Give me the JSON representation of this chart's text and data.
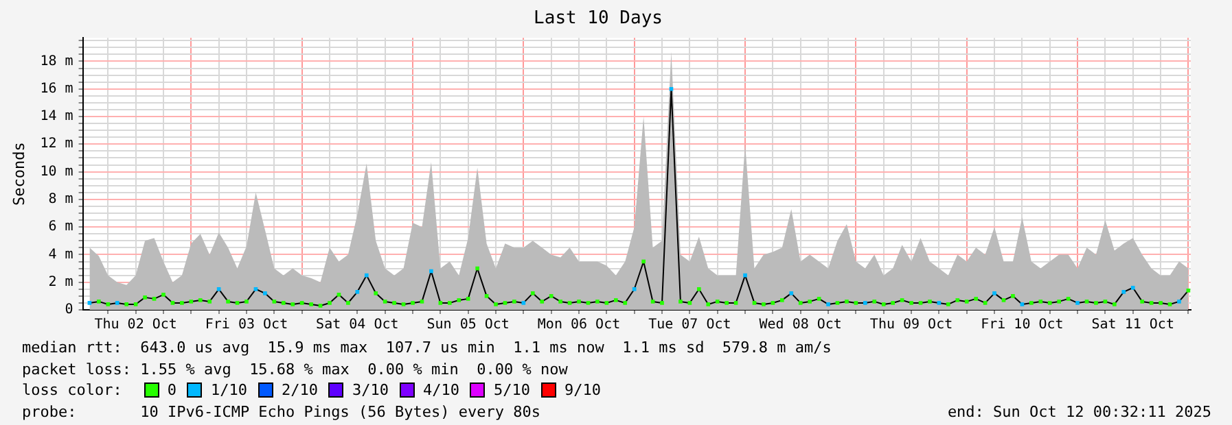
{
  "chart_data": {
    "type": "line",
    "title": "Last 10 Days",
    "ylabel": "Seconds",
    "legend_title": "loss color:",
    "legend": "bottom",
    "grid": true,
    "marker": "square",
    "xlim": [
      "2025-10-02T00:32",
      "2025-10-12T00:32"
    ],
    "xticks": [
      {
        "value": "2025-10-02T06:00",
        "label": null
      },
      {
        "value": "2025-10-02T12:00",
        "label": "Thu 02 Oct"
      },
      {
        "value": "2025-10-02T18:00",
        "label": null
      },
      {
        "value": "2025-10-03T00:00",
        "label": null
      },
      {
        "value": "2025-10-03T06:00",
        "label": null
      },
      {
        "value": "2025-10-03T12:00",
        "label": "Fri 03 Oct"
      },
      {
        "value": "2025-10-03T18:00",
        "label": null
      },
      {
        "value": "2025-10-04T00:00",
        "label": null
      },
      {
        "value": "2025-10-04T06:00",
        "label": null
      },
      {
        "value": "2025-10-04T12:00",
        "label": "Sat 04 Oct"
      },
      {
        "value": "2025-10-04T18:00",
        "label": null
      },
      {
        "value": "2025-10-05T00:00",
        "label": null
      },
      {
        "value": "2025-10-05T06:00",
        "label": null
      },
      {
        "value": "2025-10-05T12:00",
        "label": "Sun 05 Oct"
      },
      {
        "value": "2025-10-05T18:00",
        "label": null
      },
      {
        "value": "2025-10-06T00:00",
        "label": null
      },
      {
        "value": "2025-10-06T06:00",
        "label": null
      },
      {
        "value": "2025-10-06T12:00",
        "label": "Mon 06 Oct"
      },
      {
        "value": "2025-10-06T18:00",
        "label": null
      },
      {
        "value": "2025-10-07T00:00",
        "label": null
      },
      {
        "value": "2025-10-07T06:00",
        "label": null
      },
      {
        "value": "2025-10-07T12:00",
        "label": "Tue 07 Oct"
      },
      {
        "value": "2025-10-07T18:00",
        "label": null
      },
      {
        "value": "2025-10-08T00:00",
        "label": null
      },
      {
        "value": "2025-10-08T06:00",
        "label": null
      },
      {
        "value": "2025-10-08T12:00",
        "label": "Wed 08 Oct"
      },
      {
        "value": "2025-10-08T18:00",
        "label": null
      },
      {
        "value": "2025-10-09T00:00",
        "label": null
      },
      {
        "value": "2025-10-09T06:00",
        "label": null
      },
      {
        "value": "2025-10-09T12:00",
        "label": "Thu 09 Oct"
      },
      {
        "value": "2025-10-09T18:00",
        "label": null
      },
      {
        "value": "2025-10-10T00:00",
        "label": null
      },
      {
        "value": "2025-10-10T06:00",
        "label": null
      },
      {
        "value": "2025-10-10T12:00",
        "label": "Fri 10 Oct"
      },
      {
        "value": "2025-10-10T18:00",
        "label": null
      },
      {
        "value": "2025-10-11T00:00",
        "label": null
      },
      {
        "value": "2025-10-11T06:00",
        "label": null
      },
      {
        "value": "2025-10-11T12:00",
        "label": "Sat 11 Oct"
      },
      {
        "value": "2025-10-11T18:00",
        "label": null
      },
      {
        "value": "2025-10-12T00:00",
        "label": null
      }
    ],
    "ylim": [
      0,
      19.7
    ],
    "yticks": [
      0,
      {
        "value": 0.5,
        "label": null
      },
      {
        "value": 1,
        "label": null
      },
      {
        "value": 1.5,
        "label": null
      },
      {
        "value": 2,
        "label": "2 m"
      },
      {
        "value": 2.5,
        "label": null
      },
      {
        "value": 3,
        "label": null
      },
      {
        "value": 3.5,
        "label": null
      },
      {
        "value": 4,
        "label": "4 m"
      },
      {
        "value": 4.5,
        "label": null
      },
      {
        "value": 5,
        "label": null
      },
      {
        "value": 5.5,
        "label": null
      },
      {
        "value": 6,
        "label": "6 m"
      },
      {
        "value": 6.5,
        "label": null
      },
      {
        "value": 7,
        "label": null
      },
      {
        "value": 7.5,
        "label": null
      },
      {
        "value": 8,
        "label": "8 m"
      },
      {
        "value": 8.5,
        "label": null
      },
      {
        "value": 9,
        "label": null
      },
      {
        "value": 9.5,
        "label": null
      },
      {
        "value": 10,
        "label": "10 m"
      },
      {
        "value": 10.5,
        "label": null
      },
      {
        "value": 11,
        "label": null
      },
      {
        "value": 11.5,
        "label": null
      },
      {
        "value": 12,
        "label": "12 m"
      },
      {
        "value": 12.5,
        "label": null
      },
      {
        "value": 13,
        "label": null
      },
      {
        "value": 13.5,
        "label": null
      },
      {
        "value": 14,
        "label": "14 m"
      },
      {
        "value": 14.5,
        "label": null
      },
      {
        "value": 15,
        "label": null
      },
      {
        "value": 15.5,
        "label": null
      },
      {
        "value": 16,
        "label": "16 m"
      },
      {
        "value": 16.5,
        "label": null
      },
      {
        "value": 17,
        "label": null
      },
      {
        "value": 17.5,
        "label": null
      },
      {
        "value": 18,
        "label": "18 m"
      },
      {
        "value": 18.5,
        "label": null
      },
      {
        "value": 19,
        "label": null
      },
      {
        "value": 19.5,
        "label": null
      }
    ],
    "x": [
      "2025-10-02T02:00",
      "2025-10-02T04:00",
      "2025-10-02T06:00",
      "2025-10-02T08:00",
      "2025-10-02T10:00",
      "2025-10-02T12:00",
      "2025-10-02T14:00",
      "2025-10-02T16:00",
      "2025-10-02T18:00",
      "2025-10-02T20:00",
      "2025-10-02T22:00",
      "2025-10-03T00:00",
      "2025-10-03T02:00",
      "2025-10-03T04:00",
      "2025-10-03T06:00",
      "2025-10-03T08:00",
      "2025-10-03T10:00",
      "2025-10-03T12:00",
      "2025-10-03T14:00",
      "2025-10-03T16:00",
      "2025-10-03T18:00",
      "2025-10-03T20:00",
      "2025-10-03T22:00",
      "2025-10-04T00:00",
      "2025-10-04T02:00",
      "2025-10-04T04:00",
      "2025-10-04T06:00",
      "2025-10-04T08:00",
      "2025-10-04T10:00",
      "2025-10-04T12:00",
      "2025-10-04T14:00",
      "2025-10-04T16:00",
      "2025-10-04T18:00",
      "2025-10-04T20:00",
      "2025-10-04T22:00",
      "2025-10-05T00:00",
      "2025-10-05T02:00",
      "2025-10-05T04:00",
      "2025-10-05T06:00",
      "2025-10-05T08:00",
      "2025-10-05T10:00",
      "2025-10-05T12:00",
      "2025-10-05T14:00",
      "2025-10-05T16:00",
      "2025-10-05T18:00",
      "2025-10-05T20:00",
      "2025-10-05T22:00",
      "2025-10-06T00:00",
      "2025-10-06T02:00",
      "2025-10-06T04:00",
      "2025-10-06T06:00",
      "2025-10-06T08:00",
      "2025-10-06T10:00",
      "2025-10-06T12:00",
      "2025-10-06T14:00",
      "2025-10-06T16:00",
      "2025-10-06T18:00",
      "2025-10-06T20:00",
      "2025-10-06T22:00",
      "2025-10-07T00:00",
      "2025-10-07T02:00",
      "2025-10-07T04:00",
      "2025-10-07T06:00",
      "2025-10-07T08:00",
      "2025-10-07T10:00",
      "2025-10-07T12:00",
      "2025-10-07T14:00",
      "2025-10-07T16:00",
      "2025-10-07T18:00",
      "2025-10-07T20:00",
      "2025-10-07T22:00",
      "2025-10-08T00:00",
      "2025-10-08T02:00",
      "2025-10-08T04:00",
      "2025-10-08T06:00",
      "2025-10-08T08:00",
      "2025-10-08T10:00",
      "2025-10-08T12:00",
      "2025-10-08T14:00",
      "2025-10-08T16:00",
      "2025-10-08T18:00",
      "2025-10-08T20:00",
      "2025-10-08T22:00",
      "2025-10-09T00:00",
      "2025-10-09T02:00",
      "2025-10-09T04:00",
      "2025-10-09T06:00",
      "2025-10-09T08:00",
      "2025-10-09T10:00",
      "2025-10-09T12:00",
      "2025-10-09T14:00",
      "2025-10-09T16:00",
      "2025-10-09T18:00",
      "2025-10-09T20:00",
      "2025-10-09T22:00",
      "2025-10-10T00:00",
      "2025-10-10T02:00",
      "2025-10-10T04:00",
      "2025-10-10T06:00",
      "2025-10-10T08:00",
      "2025-10-10T10:00",
      "2025-10-10T12:00",
      "2025-10-10T14:00",
      "2025-10-10T16:00",
      "2025-10-10T18:00",
      "2025-10-10T20:00",
      "2025-10-10T22:00",
      "2025-10-11T00:00",
      "2025-10-11T02:00",
      "2025-10-11T04:00",
      "2025-10-11T06:00",
      "2025-10-11T08:00",
      "2025-10-11T10:00",
      "2025-10-11T12:00",
      "2025-10-11T14:00",
      "2025-10-11T16:00",
      "2025-10-11T18:00",
      "2025-10-11T20:00",
      "2025-10-11T22:00",
      "2025-10-12T00:00"
    ],
    "series": [
      {
        "type": "area",
        "color": "#bbbbbb",
        "marker": "none",
        "values": [
          4.5,
          3.9,
          2.5,
          2,
          1.8,
          2.5,
          5,
          5.2,
          3.5,
          2,
          2.5,
          4.8,
          5.5,
          4,
          5.6,
          4.5,
          3,
          4.6,
          8.5,
          5.8,
          3,
          2.5,
          3,
          2.5,
          2.3,
          2,
          4.5,
          3.5,
          4,
          6.9,
          10.6,
          5,
          3,
          2.5,
          3,
          6.3,
          6,
          10.7,
          3,
          3.5,
          2.5,
          5.2,
          10.3,
          4.8,
          3,
          4.8,
          4.5,
          4.5,
          5,
          4.5,
          4,
          3.8,
          4.5,
          3.5,
          3.5,
          3.5,
          3.2,
          2.5,
          3.5,
          6,
          14,
          4.5,
          5,
          18.7,
          4,
          3.5,
          5.3,
          3,
          2.5,
          2.5,
          2.5,
          12,
          3,
          4,
          4.2,
          4.5,
          7.3,
          3.5,
          4,
          3.5,
          3,
          5,
          6.2,
          3.5,
          3,
          4,
          2.5,
          3,
          4.7,
          3.5,
          5.2,
          3.5,
          3,
          2.5,
          4,
          3.5,
          4.5,
          4,
          6,
          3.5,
          3.5,
          6.7,
          3.5,
          3,
          3.5,
          4,
          4,
          3,
          4.5,
          4,
          6.5,
          4.3,
          4.8,
          5.2,
          4,
          3,
          2.5,
          2.5,
          3.5,
          3
        ]
      },
      {
        "color": "#000000",
        "marker": "none",
        "values": [
          0.5,
          0.6,
          0.4,
          0.5,
          0.4,
          0.4,
          0.9,
          0.8,
          1.1,
          0.5,
          0.5,
          0.6,
          0.7,
          0.6,
          1.5,
          0.6,
          0.5,
          0.6,
          1.5,
          1.2,
          0.6,
          0.5,
          0.4,
          0.5,
          0.4,
          0.3,
          0.5,
          1.1,
          0.5,
          1.3,
          2.5,
          1.2,
          0.6,
          0.5,
          0.4,
          0.5,
          0.6,
          2.8,
          0.5,
          0.5,
          0.7,
          0.8,
          3,
          1,
          0.4,
          0.5,
          0.6,
          0.5,
          1.2,
          0.6,
          1,
          0.6,
          0.5,
          0.6,
          0.5,
          0.6,
          0.5,
          0.7,
          0.5,
          1.5,
          3.5,
          0.6,
          0.5,
          16,
          0.6,
          0.5,
          1.5,
          0.4,
          0.6,
          0.5,
          0.5,
          2.5,
          0.5,
          0.4,
          0.5,
          0.7,
          1.2,
          0.5,
          0.6,
          0.8,
          0.4,
          0.5,
          0.6,
          0.5,
          0.5,
          0.6,
          0.4,
          0.5,
          0.7,
          0.5,
          0.5,
          0.6,
          0.5,
          0.4,
          0.7,
          0.6,
          0.8,
          0.5,
          1.2,
          0.7,
          1,
          0.4,
          0.5,
          0.6,
          0.5,
          0.6,
          0.8,
          0.5,
          0.6,
          0.5,
          0.6,
          0.4,
          1.3,
          1.6,
          0.6,
          0.5,
          0.5,
          0.4,
          0.6,
          1.4
        ]
      },
      {
        "type": "scatter",
        "name": "0",
        "color": "#26ff00",
        "values": [
          null,
          0.6,
          0.4,
          null,
          0.4,
          0.4,
          0.9,
          0.8,
          1.1,
          0.5,
          0.5,
          0.6,
          0.7,
          0.6,
          null,
          0.6,
          0.5,
          0.6,
          null,
          null,
          0.6,
          0.5,
          0.4,
          0.5,
          0.4,
          0.3,
          0.5,
          1.1,
          0.5,
          null,
          null,
          1.2,
          0.6,
          0.5,
          0.4,
          0.5,
          0.6,
          null,
          0.5,
          0.5,
          0.7,
          0.8,
          3,
          1,
          0.4,
          0.5,
          0.6,
          null,
          1.2,
          0.6,
          1,
          0.6,
          0.5,
          0.6,
          0.5,
          0.6,
          0.5,
          0.7,
          0.5,
          null,
          3.5,
          0.6,
          0.5,
          null,
          0.6,
          0.5,
          1.5,
          0.4,
          0.6,
          0.5,
          0.5,
          null,
          0.5,
          0.4,
          0.5,
          0.7,
          null,
          0.5,
          0.6,
          0.8,
          null,
          0.5,
          0.6,
          0.5,
          null,
          0.6,
          0.4,
          0.5,
          0.7,
          0.5,
          0.5,
          0.6,
          null,
          0.4,
          0.7,
          0.6,
          0.8,
          0.5,
          null,
          0.7,
          1,
          null,
          0.5,
          0.6,
          0.5,
          0.6,
          0.8,
          null,
          0.6,
          0.5,
          0.6,
          0.4,
          null,
          null,
          0.6,
          0.5,
          0.5,
          0.4,
          null,
          1.4
        ]
      },
      {
        "type": "scatter",
        "name": "1/10",
        "color": "#00b8ff",
        "values": [
          0.5,
          null,
          null,
          0.5,
          null,
          null,
          null,
          null,
          null,
          null,
          null,
          null,
          null,
          null,
          1.5,
          null,
          null,
          null,
          1.5,
          1.2,
          null,
          null,
          null,
          null,
          null,
          null,
          null,
          null,
          null,
          1.3,
          2.5,
          null,
          null,
          null,
          null,
          null,
          null,
          2.8,
          null,
          null,
          null,
          null,
          null,
          null,
          null,
          null,
          null,
          0.5,
          null,
          null,
          null,
          null,
          null,
          null,
          null,
          null,
          null,
          null,
          null,
          1.5,
          null,
          null,
          null,
          16,
          null,
          null,
          null,
          null,
          null,
          null,
          null,
          2.5,
          null,
          null,
          null,
          null,
          1.2,
          null,
          null,
          null,
          0.4,
          null,
          null,
          null,
          0.5,
          null,
          null,
          null,
          null,
          null,
          null,
          null,
          0.5,
          null,
          null,
          null,
          null,
          null,
          1.2,
          null,
          null,
          0.4,
          null,
          null,
          null,
          null,
          null,
          0.5,
          null,
          null,
          null,
          null,
          1.3,
          1.6,
          null,
          null,
          null,
          null,
          0.6,
          null
        ]
      },
      {
        "type": "scatter",
        "name": "2/10",
        "color": "#0059ff",
        "values": [
          null,
          null,
          null,
          null,
          null,
          null,
          null,
          null,
          null,
          null,
          null,
          null,
          null,
          null,
          null,
          null,
          null,
          null,
          null,
          null,
          null,
          null,
          null,
          null,
          null,
          null,
          null,
          null,
          null,
          null,
          null,
          null,
          null,
          null,
          null,
          null,
          null,
          null,
          null,
          null,
          null,
          null,
          null,
          null,
          null,
          null,
          null,
          null,
          null,
          null,
          null,
          null,
          null,
          null,
          null,
          null,
          null,
          null,
          null,
          null,
          null,
          null,
          null,
          null,
          null,
          null,
          null,
          null,
          null,
          null,
          null,
          null,
          null,
          null,
          null,
          null,
          null,
          null,
          null,
          null,
          null,
          null,
          null,
          null,
          null,
          null,
          null,
          null,
          null,
          null,
          null,
          null,
          null,
          null,
          null,
          null,
          null,
          null,
          null,
          null,
          null,
          null,
          null,
          null,
          null,
          null,
          null,
          null,
          null,
          null,
          null,
          null,
          null,
          null,
          null,
          null,
          null,
          null,
          null,
          null
        ]
      },
      {
        "type": "scatter",
        "name": "3/10",
        "color": "#5e00ff",
        "values": [
          null,
          null,
          null,
          null,
          null,
          null,
          null,
          null,
          null,
          null,
          null,
          null,
          null,
          null,
          null,
          null,
          null,
          null,
          null,
          null,
          null,
          null,
          null,
          null,
          null,
          null,
          null,
          null,
          null,
          null,
          null,
          null,
          null,
          null,
          null,
          null,
          null,
          null,
          null,
          null,
          null,
          null,
          null,
          null,
          null,
          null,
          null,
          null,
          null,
          null,
          null,
          null,
          null,
          null,
          null,
          null,
          null,
          null,
          null,
          null,
          null,
          null,
          null,
          null,
          null,
          null,
          null,
          null,
          null,
          null,
          null,
          null,
          null,
          null,
          null,
          null,
          null,
          null,
          null,
          null,
          null,
          null,
          null,
          null,
          null,
          null,
          null,
          null,
          null,
          null,
          null,
          null,
          null,
          null,
          null,
          null,
          null,
          null,
          null,
          null,
          null,
          null,
          null,
          null,
          null,
          null,
          null,
          null,
          null,
          null,
          null,
          null,
          null,
          null,
          null,
          null,
          null,
          null,
          null,
          null
        ]
      },
      {
        "type": "scatter",
        "name": "4/10",
        "color": "#7e00ff",
        "values": [
          null,
          null,
          null,
          null,
          null,
          null,
          null,
          null,
          null,
          null,
          null,
          null,
          null,
          null,
          null,
          null,
          null,
          null,
          null,
          null,
          null,
          null,
          null,
          null,
          null,
          null,
          null,
          null,
          null,
          null,
          null,
          null,
          null,
          null,
          null,
          null,
          null,
          null,
          null,
          null,
          null,
          null,
          null,
          null,
          null,
          null,
          null,
          null,
          null,
          null,
          null,
          null,
          null,
          null,
          null,
          null,
          null,
          null,
          null,
          null,
          null,
          null,
          null,
          null,
          null,
          null,
          null,
          null,
          null,
          null,
          null,
          null,
          null,
          null,
          null,
          null,
          null,
          null,
          null,
          null,
          null,
          null,
          null,
          null,
          null,
          null,
          null,
          null,
          null,
          null,
          null,
          null,
          null,
          null,
          null,
          null,
          null,
          null,
          null,
          null,
          null,
          null,
          null,
          null,
          null,
          null,
          null,
          null,
          null,
          null,
          null,
          null,
          null,
          null,
          null,
          null,
          null,
          null,
          null,
          null
        ]
      },
      {
        "type": "scatter",
        "name": "5/10",
        "color": "#dd00ff",
        "values": [
          null,
          null,
          null,
          null,
          null,
          null,
          null,
          null,
          null,
          null,
          null,
          null,
          null,
          null,
          null,
          null,
          null,
          null,
          null,
          null,
          null,
          null,
          null,
          null,
          null,
          null,
          null,
          null,
          null,
          null,
          null,
          null,
          null,
          null,
          null,
          null,
          null,
          null,
          null,
          null,
          null,
          null,
          null,
          null,
          null,
          null,
          null,
          null,
          null,
          null,
          null,
          null,
          null,
          null,
          null,
          null,
          null,
          null,
          null,
          null,
          null,
          null,
          null,
          null,
          null,
          null,
          null,
          null,
          null,
          null,
          null,
          null,
          null,
          null,
          null,
          null,
          null,
          null,
          null,
          null,
          null,
          null,
          null,
          null,
          null,
          null,
          null,
          null,
          null,
          null,
          null,
          null,
          null,
          null,
          null,
          null,
          null,
          null,
          null,
          null,
          null,
          null,
          null,
          null,
          null,
          null,
          null,
          null,
          null,
          null,
          null,
          null,
          null,
          null,
          null,
          null,
          null,
          null,
          null,
          null
        ]
      },
      {
        "type": "scatter",
        "name": "9/10",
        "color": "#ff0000",
        "values": [
          null,
          null,
          null,
          null,
          null,
          null,
          null,
          null,
          null,
          null,
          null,
          null,
          null,
          null,
          null,
          null,
          null,
          null,
          null,
          null,
          null,
          null,
          null,
          null,
          null,
          null,
          null,
          null,
          null,
          null,
          null,
          null,
          null,
          null,
          null,
          null,
          null,
          null,
          null,
          null,
          null,
          null,
          null,
          null,
          null,
          null,
          null,
          null,
          null,
          null,
          null,
          null,
          null,
          null,
          null,
          null,
          null,
          null,
          null,
          null,
          null,
          null,
          null,
          null,
          null,
          null,
          null,
          null,
          null,
          null,
          null,
          null,
          null,
          null,
          null,
          null,
          null,
          null,
          null,
          null,
          null,
          null,
          null,
          null,
          null,
          null,
          null,
          null,
          null,
          null,
          null,
          null,
          null,
          null,
          null,
          null,
          null,
          null,
          null,
          null,
          null,
          null,
          null,
          null,
          null,
          null,
          null,
          null,
          null,
          null,
          null,
          null,
          null,
          null,
          null,
          null,
          null,
          null,
          null,
          null
        ]
      }
    ],
    "annotations": [
      "median rtt:  643.0 us avg  15.9 ms max  107.7 us min  1.1 ms now  1.1 ms sd  579.8 m am/s",
      "packet loss: 1.55 % avg  15.68 % max  0.00 % min  0.00 % now",
      "probe:       10 IPv6-ICMP Echo Pings (56 Bytes) every 80s",
      "end: Sun Oct 12 00:32:11 2025"
    ]
  }
}
